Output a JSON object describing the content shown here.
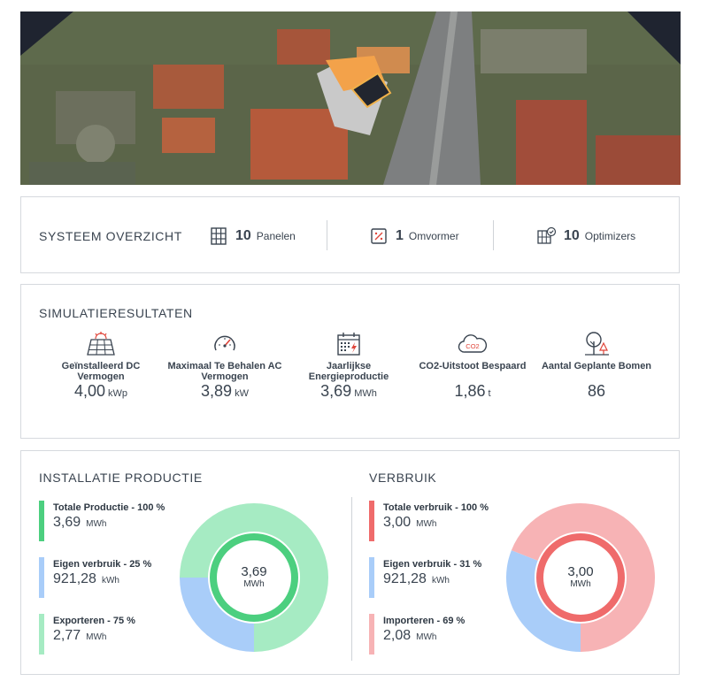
{
  "overview": {
    "title": "SYSTEEM OVERZICHT",
    "panels": {
      "count": "10",
      "label": "Panelen"
    },
    "inverter": {
      "count": "1",
      "label": "Omvormer"
    },
    "optimizers": {
      "count": "10",
      "label": "Optimizers"
    }
  },
  "simulation": {
    "title": "SIMULATIERESULTATEN",
    "items": [
      {
        "icon": "solar-panel-icon",
        "label": "Geïnstalleerd DC Vermogen",
        "value": "4,00",
        "unit": "kWp"
      },
      {
        "icon": "gauge-icon",
        "label": "Maximaal Te Behalen AC Vermogen",
        "value": "3,89",
        "unit": "kW"
      },
      {
        "icon": "calendar-energy-icon",
        "label": "Jaarlijkse Energieproductie",
        "value": "3,69",
        "unit": "MWh"
      },
      {
        "icon": "co2-cloud-icon",
        "label": "CO2-Uitstoot Bespaard",
        "value": "1,86",
        "unit": "t"
      },
      {
        "icon": "trees-icon",
        "label": "Aantal Geplante Bomen",
        "value": "86",
        "unit": ""
      }
    ]
  },
  "production": {
    "title": "INSTALLATIE PRODUCTIE",
    "legend": [
      {
        "name": "Totale Productie - 100 %",
        "value": "3,69",
        "unit": "MWh",
        "color": "#4ccf7f"
      },
      {
        "name": "Eigen verbruik - 25 %",
        "value": "921,28",
        "unit": "kWh",
        "color": "#a9cdf9"
      },
      {
        "name": "Exporteren - 75 %",
        "value": "2,77",
        "unit": "MWh",
        "color": "#a6ebc3"
      }
    ],
    "donut": {
      "center_value": "3,69",
      "center_unit": "MWh",
      "inner_color": "#4ccf7f",
      "segments": [
        {
          "fraction": 0.25,
          "color": "#a9cdf9"
        },
        {
          "fraction": 0.75,
          "color": "#a6ebc3"
        }
      ]
    }
  },
  "consumption": {
    "title": "VERBRUIK",
    "legend": [
      {
        "name": "Totale verbruik - 100 %",
        "value": "3,00",
        "unit": "MWh",
        "color": "#ef6b6b"
      },
      {
        "name": "Eigen verbruik - 31 %",
        "value": "921,28",
        "unit": "kWh",
        "color": "#a9cdf9"
      },
      {
        "name": "Importeren - 69 %",
        "value": "2,08",
        "unit": "MWh",
        "color": "#f7b3b5"
      }
    ],
    "donut": {
      "center_value": "3,00",
      "center_unit": "MWh",
      "inner_color": "#ef6b6b",
      "segments": [
        {
          "fraction": 0.31,
          "color": "#a9cdf9"
        },
        {
          "fraction": 0.69,
          "color": "#f7b3b5"
        }
      ]
    }
  }
}
